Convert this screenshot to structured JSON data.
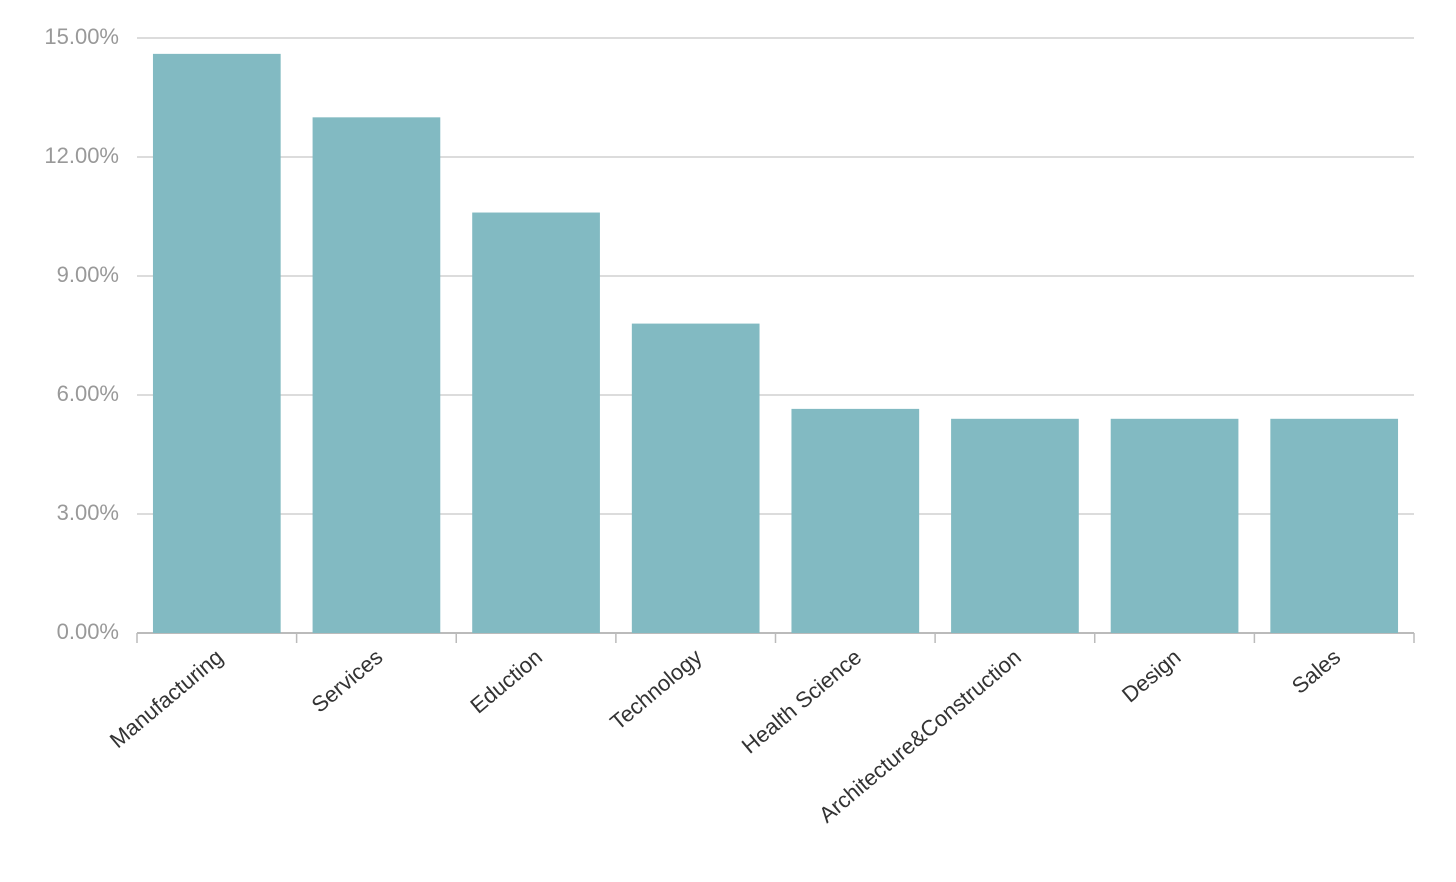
{
  "chart_data": {
    "type": "bar",
    "categories": [
      "Manufacturing",
      "Services",
      "Eduction",
      "Technology",
      "Health Science",
      "Architecture&Construction",
      "Design",
      "Sales"
    ],
    "values": [
      14.6,
      13.0,
      10.6,
      7.8,
      5.65,
      5.4,
      5.4,
      5.4
    ],
    "color": "#82bac2",
    "ylim": [
      0,
      15
    ],
    "yticks": [
      {
        "value": 0,
        "label": "0.00%"
      },
      {
        "value": 3,
        "label": "3.00%"
      },
      {
        "value": 6,
        "label": "6.00%"
      },
      {
        "value": 9,
        "label": "9.00%"
      },
      {
        "value": 12,
        "label": "12.00%"
      },
      {
        "value": 15,
        "label": "15.00%"
      }
    ],
    "grid": true
  }
}
